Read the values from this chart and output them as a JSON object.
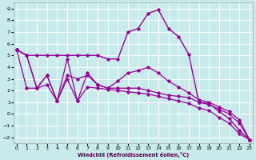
{
  "xlabel": "Windchill (Refroidissement éolien,°C)",
  "background_color": "#c8eaea",
  "grid_color": "#ffffff",
  "line_color": "#990099",
  "xlim": [
    -0.3,
    23.3
  ],
  "ylim": [
    -2.5,
    9.5
  ],
  "yticks": [
    -2,
    -1,
    0,
    1,
    2,
    3,
    4,
    5,
    6,
    7,
    8,
    9
  ],
  "xticks": [
    0,
    1,
    2,
    3,
    4,
    5,
    6,
    7,
    8,
    9,
    10,
    11,
    12,
    13,
    14,
    15,
    16,
    17,
    18,
    19,
    20,
    21,
    22,
    23
  ],
  "series": [
    [
      5.5,
      5.0,
      5.0,
      5.0,
      5.0,
      5.0,
      5.0,
      5.0,
      5.0,
      4.7,
      4.7,
      7.0,
      7.3,
      8.6,
      8.9,
      7.3,
      6.6,
      5.1,
      1.0,
      0.9,
      0.2,
      -0.4,
      -1.4,
      -2.2
    ],
    [
      5.5,
      5.0,
      2.2,
      3.3,
      1.1,
      3.3,
      3.0,
      3.3,
      2.5,
      2.2,
      2.2,
      2.2,
      2.2,
      2.0,
      1.8,
      1.6,
      1.5,
      1.4,
      1.0,
      0.8,
      0.4,
      0.0,
      -0.8,
      -2.2
    ],
    [
      5.5,
      5.0,
      2.2,
      3.3,
      1.1,
      4.7,
      1.1,
      3.5,
      2.5,
      2.2,
      2.8,
      3.5,
      3.7,
      4.0,
      3.5,
      2.8,
      2.3,
      1.8,
      1.2,
      1.0,
      0.6,
      0.2,
      -0.5,
      -2.2
    ],
    [
      5.5,
      2.2,
      2.2,
      2.5,
      1.1,
      3.0,
      1.1,
      2.3,
      2.2,
      2.1,
      2.0,
      1.9,
      1.8,
      1.7,
      1.5,
      1.3,
      1.1,
      0.9,
      0.5,
      0.3,
      -0.3,
      -0.8,
      -1.7,
      -2.2
    ]
  ],
  "linestyles": [
    "-",
    "-",
    "-",
    "-"
  ],
  "linewidths": [
    1.0,
    0.9,
    0.9,
    0.9
  ]
}
